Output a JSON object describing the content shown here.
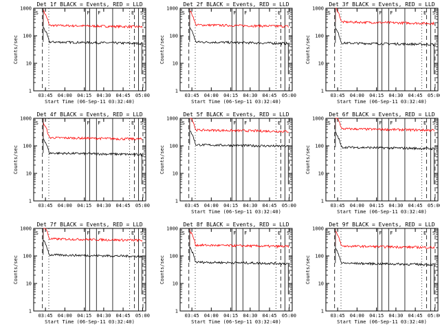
{
  "chart_data": [
    {
      "type": "line",
      "title": "Det 1f BLACK = Events, RED = LLD",
      "xlabel": "Start Time (06-Sep-11 03:32:40)",
      "ylabel": "Counts/sec",
      "y_scale": "log",
      "ylim": [
        1,
        1000
      ],
      "x_ticks": [
        "03:45",
        "04:00",
        "04:15",
        "04:30",
        "04:45",
        "05:00"
      ],
      "y_ticks": [
        "1",
        "10",
        "100",
        "1000"
      ],
      "segment_labels": [
        "S",
        "F",
        "F",
        "E",
        "S"
      ],
      "series": [
        {
          "color": "#ff0000",
          "level": 240
        },
        {
          "color": "#000000",
          "level": 60
        }
      ]
    },
    {
      "type": "line",
      "title": "Det 2f BLACK = Events, RED = LLD",
      "xlabel": "Start Time (06-Sep-11 03:32:40)",
      "ylabel": "Counts/sec",
      "y_scale": "log",
      "ylim": [
        1,
        1000
      ],
      "x_ticks": [
        "03:45",
        "04:00",
        "04:15",
        "04:30",
        "04:45",
        "05:00"
      ],
      "y_ticks": [
        "1",
        "10",
        "100",
        "1000"
      ],
      "segment_labels": [
        "S",
        "F",
        "F",
        "E",
        "S"
      ],
      "series": [
        {
          "color": "#ff0000",
          "level": 250
        },
        {
          "color": "#000000",
          "level": 60
        }
      ]
    },
    {
      "type": "line",
      "title": "Det 3f BLACK = Events, RED = LLD",
      "xlabel": "Start Time (06-Sep-11 03:32:40)",
      "ylabel": "Counts/sec",
      "y_scale": "log",
      "ylim": [
        1,
        1000
      ],
      "x_ticks": [
        "03:45",
        "04:00",
        "04:15",
        "04:30",
        "04:45",
        "05:00"
      ],
      "y_ticks": [
        "1",
        "10",
        "100",
        "1000"
      ],
      "segment_labels": [
        "S",
        "F",
        "F",
        "E",
        "S"
      ],
      "series": [
        {
          "color": "#ff0000",
          "level": 320
        },
        {
          "color": "#000000",
          "level": 55
        }
      ]
    },
    {
      "type": "line",
      "title": "Det 4f BLACK = Events, RED = LLD",
      "xlabel": "",
      "ylabel": "Counts/sec",
      "y_scale": "log",
      "ylim": [
        1,
        1000
      ],
      "x_ticks": [
        "03:45",
        "04:00",
        "04:15",
        "04:30",
        "04:45",
        "05:00"
      ],
      "y_ticks": [
        "1",
        "10",
        "100",
        "1000"
      ],
      "segment_labels": [
        "S",
        "F",
        "F",
        "E",
        "S"
      ],
      "series": [
        {
          "color": "#ff0000",
          "level": 200
        },
        {
          "color": "#000000",
          "level": 55
        }
      ]
    },
    {
      "type": "line",
      "title": "Det 5f BLACK = Events, RED = LLD",
      "xlabel": "Start Time (06-Sep-11 03:32:40)",
      "ylabel": "Counts/sec",
      "y_scale": "log",
      "ylim": [
        1,
        1000
      ],
      "x_ticks": [
        "03:45",
        "04:00",
        "04:15",
        "04:30",
        "04:45",
        "05:00"
      ],
      "y_ticks": [
        "1",
        "10",
        "100",
        "1000"
      ],
      "segment_labels": [
        "S",
        "F",
        "F",
        "E",
        "S"
      ],
      "series": [
        {
          "color": "#ff0000",
          "level": 380
        },
        {
          "color": "#000000",
          "level": 110
        }
      ]
    },
    {
      "type": "line",
      "title": "Det 6f BLACK = Events, RED = LLD",
      "xlabel": "Start Time (06-Sep-11 03:32:40)",
      "ylabel": "Counts/sec",
      "y_scale": "log",
      "ylim": [
        1,
        1000
      ],
      "x_ticks": [
        "03:45",
        "04:00",
        "04:15",
        "04:30",
        "04:45",
        "05:00"
      ],
      "y_ticks": [
        "1",
        "10",
        "100",
        "1000"
      ],
      "segment_labels": [
        "S",
        "F",
        "F",
        "E",
        "S"
      ],
      "series": [
        {
          "color": "#ff0000",
          "level": 420
        },
        {
          "color": "#000000",
          "level": 90
        }
      ]
    },
    {
      "type": "line",
      "title": "Det 7f BLACK = Events, RED = LLD",
      "xlabel": "Start Time (06-Sep-11 03:32:40)",
      "ylabel": "Counts/sec",
      "y_scale": "log",
      "ylim": [
        1,
        1000
      ],
      "x_ticks": [
        "03:45",
        "04:00",
        "04:15",
        "04:30",
        "04:45",
        "05:00"
      ],
      "y_ticks": [
        "1",
        "10",
        "100",
        "1000"
      ],
      "segment_labels": [
        "S",
        "F",
        "F",
        "E",
        "S"
      ],
      "series": [
        {
          "color": "#ff0000",
          "level": 420
        },
        {
          "color": "#000000",
          "level": 110
        }
      ]
    },
    {
      "type": "line",
      "title": "Det 8f BLACK = Events, RED = LLD",
      "xlabel": "Start Time (06-Sep-11 03:32:40)",
      "ylabel": "Counts/sec",
      "y_scale": "log",
      "ylim": [
        1,
        1000
      ],
      "x_ticks": [
        "03:45",
        "04:00",
        "04:15",
        "04:30",
        "04:45",
        "05:00"
      ],
      "y_ticks": [
        "1",
        "10",
        "100",
        "1000"
      ],
      "segment_labels": [
        "S",
        "F",
        "F",
        "E",
        "S"
      ],
      "series": [
        {
          "color": "#ff0000",
          "level": 250
        },
        {
          "color": "#000000",
          "level": 60
        }
      ]
    },
    {
      "type": "line",
      "title": "Det 9f BLACK = Events, RED = LLD",
      "xlabel": "Start Time (06-Sep-11 03:32:40)",
      "ylabel": "Counts/sec",
      "y_scale": "log",
      "ylim": [
        1,
        1000
      ],
      "x_ticks": [
        "03:45",
        "04:00",
        "04:15",
        "04:30",
        "04:45",
        "05:00"
      ],
      "y_ticks": [
        "1",
        "10",
        "100",
        "1000"
      ],
      "segment_labels": [
        "S",
        "F",
        "F",
        "E",
        "S"
      ],
      "series": [
        {
          "color": "#ff0000",
          "level": 230
        },
        {
          "color": "#000000",
          "level": 55
        }
      ]
    }
  ]
}
